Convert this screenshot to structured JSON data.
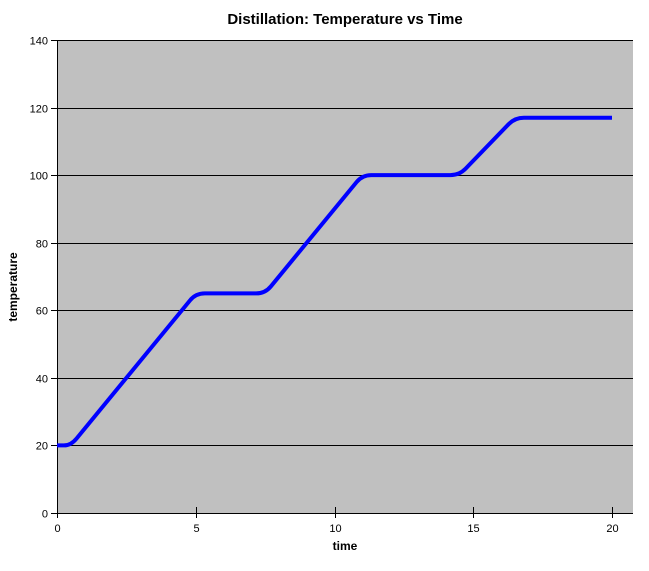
{
  "chart_data": {
    "type": "line",
    "title": "Distillation: Temperature vs Time",
    "xlabel": "time",
    "ylabel": "temperature",
    "series": [
      {
        "name": "temperature",
        "color": "#0000ff",
        "points": [
          [
            0,
            20
          ],
          [
            0.5,
            20
          ],
          [
            5,
            65
          ],
          [
            7.5,
            65
          ],
          [
            11,
            100
          ],
          [
            14.5,
            100
          ],
          [
            16.5,
            117
          ],
          [
            20,
            117
          ]
        ]
      }
    ],
    "xlim": [
      0,
      20
    ],
    "ylim": [
      0,
      140
    ],
    "x_ticks": [
      "0",
      "5",
      "10",
      "15",
      "20"
    ],
    "y_ticks": [
      "0",
      "20",
      "40",
      "60",
      "80",
      "100",
      "120",
      "140"
    ],
    "grid": "horizontal-major",
    "legend": "none",
    "plot_bg_color": "#c0c0c0",
    "gridline_color": "#000000",
    "axis_color": "#000000",
    "background_color": "#ffffff"
  }
}
